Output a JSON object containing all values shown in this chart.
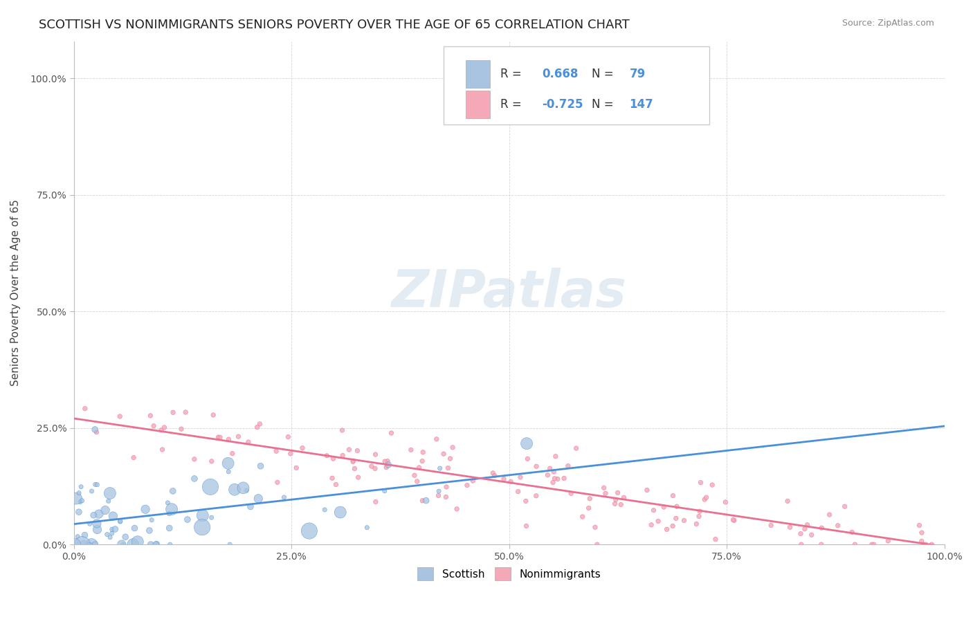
{
  "title": "SCOTTISH VS NONIMMIGRANTS SENIORS POVERTY OVER THE AGE OF 65 CORRELATION CHART",
  "source": "Source: ZipAtlas.com",
  "ylabel": "Seniors Poverty Over the Age of 65",
  "xlim": [
    0.0,
    1.0
  ],
  "ylim": [
    0.0,
    1.08
  ],
  "xticks": [
    0.0,
    0.25,
    0.5,
    0.75,
    1.0
  ],
  "xticklabels": [
    "0.0%",
    "25.0%",
    "50.0%",
    "75.0%",
    "100.0%"
  ],
  "yticks": [
    0.0,
    0.25,
    0.5,
    0.75,
    1.0
  ],
  "yticklabels": [
    "0.0%",
    "25.0%",
    "50.0%",
    "75.0%",
    "100.0%"
  ],
  "scottish_R": 0.668,
  "scottish_N": 79,
  "nonimmigrants_R": -0.725,
  "nonimmigrants_N": 147,
  "scottish_color": "#a8c4e0",
  "nonimmigrants_color": "#f4a8b8",
  "scottish_line_color": "#4a90d9",
  "nonimmigrants_line_color": "#e87090",
  "watermark": "ZIPatlas",
  "background_color": "#ffffff",
  "title_fontsize": 13,
  "axis_label_fontsize": 11,
  "tick_fontsize": 10,
  "legend_fontsize": 12,
  "scottish_seed": 42,
  "nonimmigrants_seed": 123
}
